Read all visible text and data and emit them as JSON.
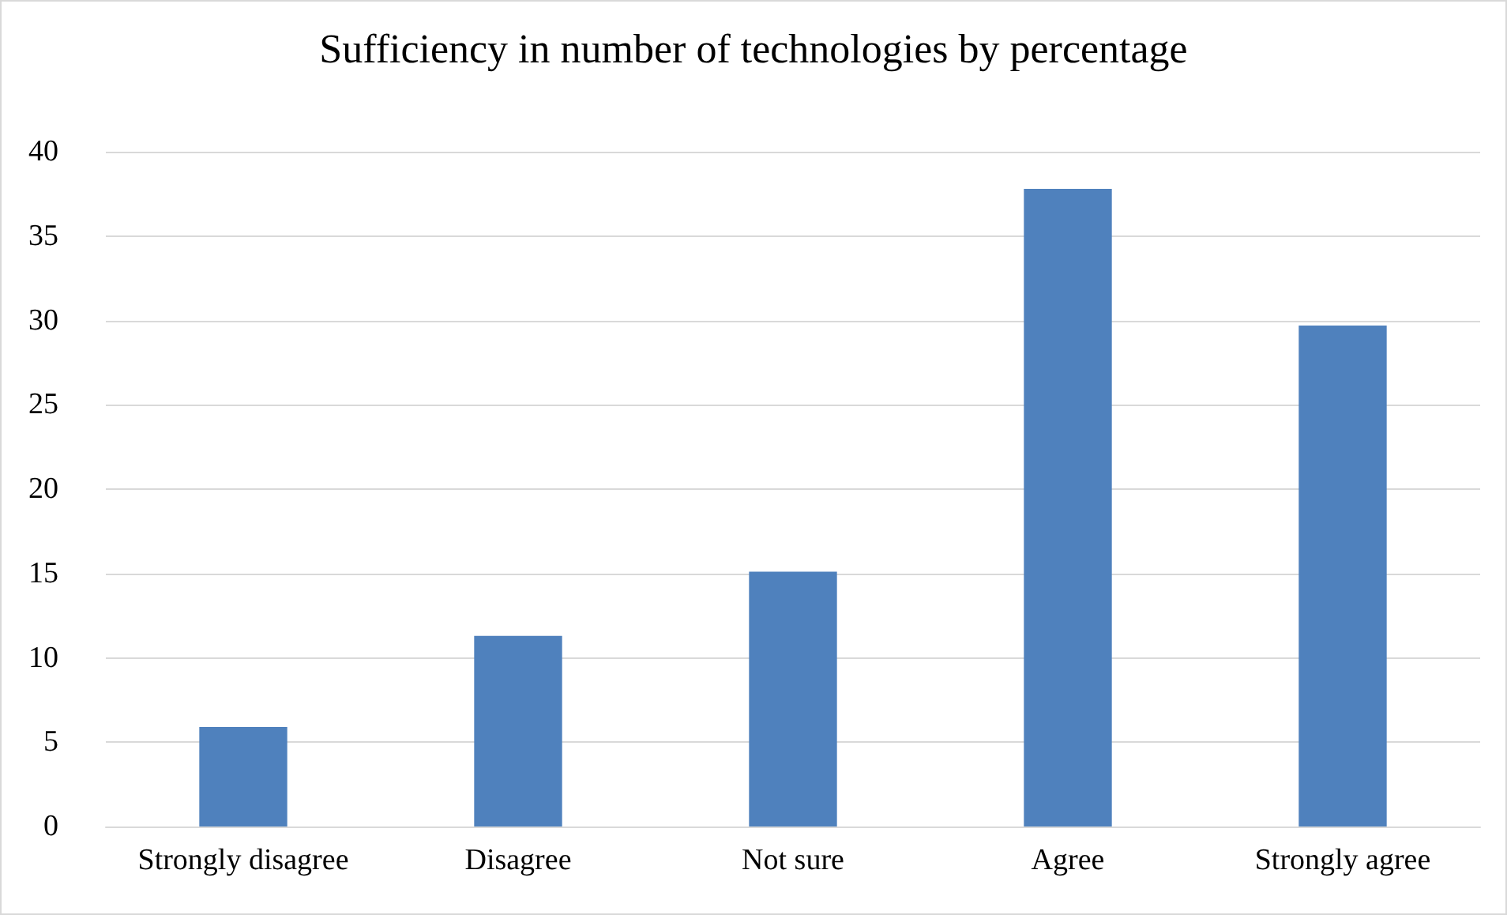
{
  "chart_data": {
    "type": "bar",
    "title": "Sufficiency in number of technologies by percentage",
    "categories": [
      "Strongly disagree",
      "Disagree",
      "Not sure",
      "Agree",
      "Strongly agree"
    ],
    "values": [
      5.9,
      11.3,
      15.1,
      37.8,
      29.7
    ],
    "color": "#4f81bd",
    "ylim": [
      0,
      40
    ],
    "yticks": [
      0,
      5,
      10,
      15,
      20,
      25,
      30,
      35,
      40
    ],
    "grid": "y"
  }
}
